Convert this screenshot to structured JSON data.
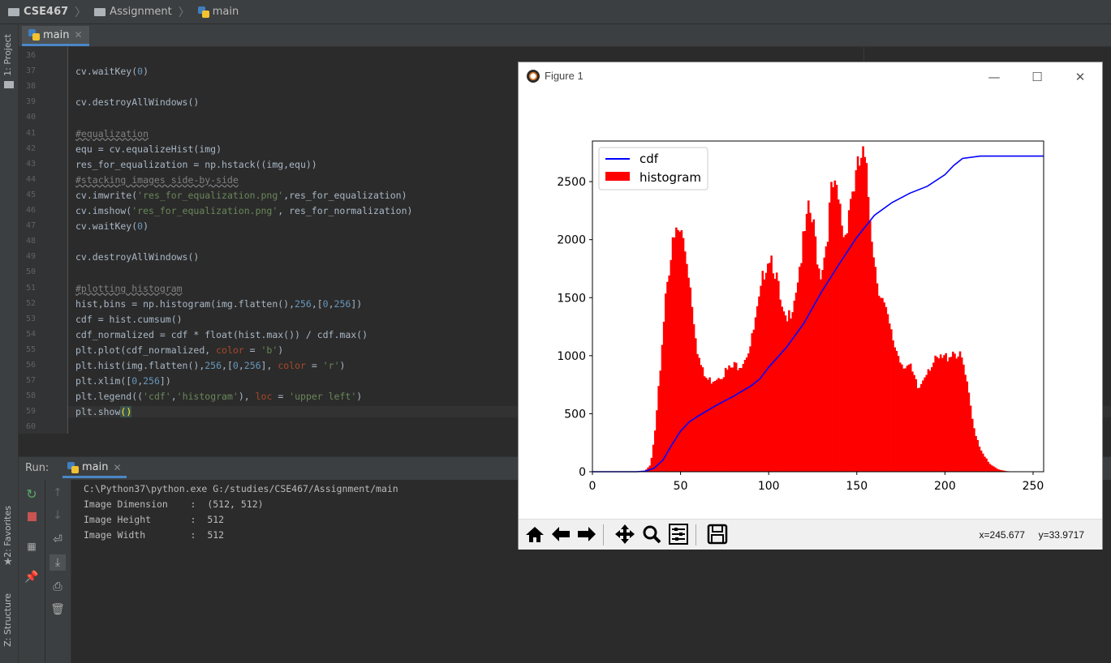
{
  "breadcrumb": {
    "project": "CSE467",
    "folder": "Assignment",
    "file": "main"
  },
  "left_tool_windows": {
    "project": "1: Project",
    "favorites": "2: Favorites",
    "structure": "Z: Structure"
  },
  "editor": {
    "tab": "main",
    "lines": [
      {
        "n": "36",
        "t": ""
      },
      {
        "n": "37",
        "t": "cv.waitKey(0)"
      },
      {
        "n": "38",
        "t": ""
      },
      {
        "n": "39",
        "t": "cv.destroyAllWindows()"
      },
      {
        "n": "40",
        "t": ""
      },
      {
        "n": "41",
        "t": "#equalization"
      },
      {
        "n": "42",
        "t": "equ = cv.equalizeHist(img)"
      },
      {
        "n": "43",
        "t": "res_for_equalization = np.hstack((img,equ))"
      },
      {
        "n": "44",
        "t": "#stacking images side-by-side"
      },
      {
        "n": "45",
        "t": "cv.imwrite('res_for_equalization.png',res_for_equalization)"
      },
      {
        "n": "46",
        "t": "cv.imshow('res_for_equalization.png', res_for_normalization)"
      },
      {
        "n": "47",
        "t": "cv.waitKey(0)"
      },
      {
        "n": "48",
        "t": ""
      },
      {
        "n": "49",
        "t": "cv.destroyAllWindows()"
      },
      {
        "n": "50",
        "t": ""
      },
      {
        "n": "51",
        "t": "#plotting histogram"
      },
      {
        "n": "52",
        "t": "hist,bins = np.histogram(img.flatten(),256,[0,256])"
      },
      {
        "n": "53",
        "t": "cdf = hist.cumsum()"
      },
      {
        "n": "54",
        "t": "cdf_normalized = cdf * float(hist.max()) / cdf.max()"
      },
      {
        "n": "55",
        "t": "plt.plot(cdf_normalized, color = 'b')"
      },
      {
        "n": "56",
        "t": "plt.hist(img.flatten(),256,[0,256], color = 'r')"
      },
      {
        "n": "57",
        "t": "plt.xlim([0,256])"
      },
      {
        "n": "58",
        "t": "plt.legend(('cdf','histogram'), loc = 'upper left')"
      },
      {
        "n": "59",
        "t": "plt.show()"
      },
      {
        "n": "60",
        "t": ""
      }
    ]
  },
  "run": {
    "label": "Run:",
    "tab": "main",
    "output": [
      "C:\\Python37\\python.exe G:/studies/CSE467/Assignment/main",
      "Image Dimension    :  (512, 512)",
      "Image Height       :  512",
      "Image Width        :  512"
    ]
  },
  "figure": {
    "title": "Figure 1",
    "window_buttons": {
      "minimize": "—",
      "maximize": "☐",
      "close": "✕"
    },
    "coords": "x=245.677     y=33.9717",
    "icon_names": [
      "home-icon",
      "back-icon",
      "forward-icon",
      "pan-icon",
      "zoom-icon",
      "configure-icon",
      "save-icon"
    ]
  },
  "chart_data": {
    "type": "bar",
    "title": "",
    "xlabel": "",
    "ylabel": "",
    "xlim": [
      0,
      256
    ],
    "ylim": [
      0,
      2850
    ],
    "xticks": [
      0,
      50,
      100,
      150,
      200,
      250
    ],
    "yticks": [
      0,
      500,
      1000,
      1500,
      2000,
      2500
    ],
    "legend": {
      "position": "upper left",
      "entries": [
        "cdf",
        "histogram"
      ]
    },
    "colors": {
      "cdf": "#0000ff",
      "histogram": "#ff0000"
    },
    "series": [
      {
        "name": "histogram",
        "type": "bar",
        "x": [
          25,
          30,
          33,
          36,
          39,
          42,
          45,
          48,
          51,
          54,
          57,
          60,
          63,
          66,
          70,
          75,
          80,
          85,
          90,
          95,
          98,
          101,
          104,
          107,
          110,
          115,
          120,
          123,
          126,
          129,
          132,
          136,
          140,
          143,
          146,
          150,
          153,
          155,
          158,
          161,
          165,
          170,
          175,
          180,
          185,
          190,
          195,
          200,
          205,
          210,
          213,
          216,
          220,
          225,
          230,
          235,
          240
        ],
        "values": [
          0,
          10,
          60,
          400,
          1000,
          1650,
          1900,
          2070,
          2040,
          1800,
          1400,
          1000,
          830,
          780,
          820,
          860,
          900,
          950,
          1100,
          1480,
          1800,
          1900,
          1720,
          1400,
          1250,
          1550,
          2000,
          2250,
          2050,
          1700,
          1900,
          2450,
          2300,
          2000,
          2350,
          2550,
          2720,
          2600,
          2150,
          1700,
          1450,
          1150,
          950,
          900,
          700,
          900,
          950,
          980,
          1050,
          950,
          700,
          400,
          200,
          70,
          20,
          5,
          0
        ]
      },
      {
        "name": "cdf",
        "type": "line",
        "x": [
          0,
          25,
          30,
          35,
          40,
          45,
          50,
          55,
          60,
          70,
          80,
          90,
          95,
          100,
          110,
          120,
          130,
          140,
          150,
          160,
          170,
          180,
          190,
          200,
          205,
          210,
          220,
          240,
          256
        ],
        "values": [
          0,
          0,
          5,
          30,
          100,
          230,
          350,
          430,
          480,
          570,
          650,
          740,
          800,
          900,
          1070,
          1280,
          1550,
          1790,
          2020,
          2210,
          2320,
          2400,
          2460,
          2560,
          2640,
          2700,
          2720,
          2720,
          2720
        ]
      }
    ]
  }
}
